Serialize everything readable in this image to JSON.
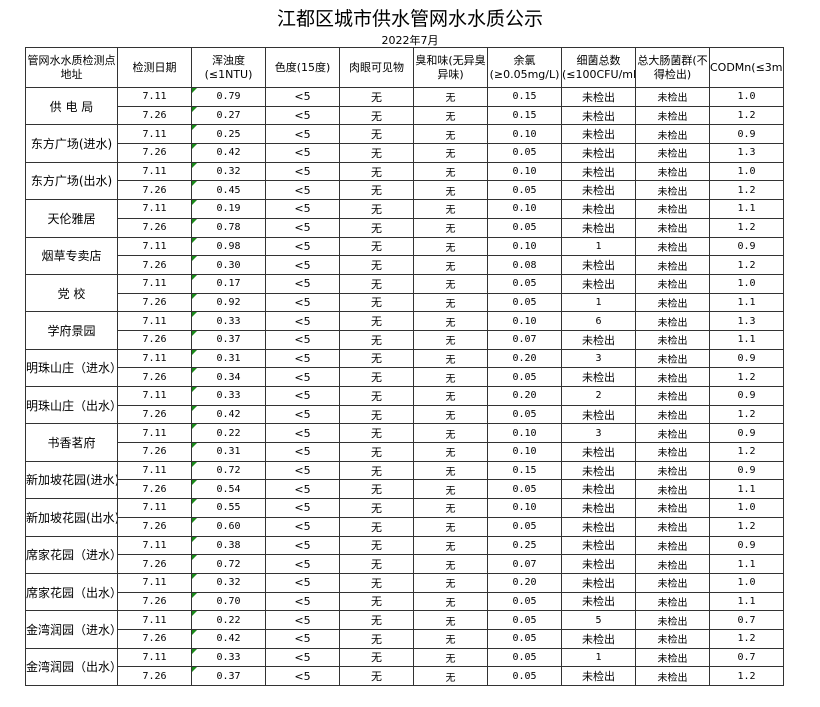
{
  "title": "江都区城市供水管网水水质公示",
  "subtitle": "2022年7月",
  "headers": [
    "管网水水质检测点地址",
    "检测日期",
    "浑浊度(≤1NTU)",
    "色度(15度)",
    "肉眼可见物",
    "臭和味(无异臭异味)",
    "余氯(≥0.05mg/L)",
    "细菌总数(≤100CFU/mL)",
    "总大肠菌群(不得检出)",
    "CODMn(≤3mg/L)"
  ],
  "sites": [
    {
      "name": "供 电 局",
      "rows": [
        [
          "7.11",
          "0.79",
          "<5",
          "无",
          "无",
          "0.15",
          "未检出",
          "未检出",
          "1.0"
        ],
        [
          "7.26",
          "0.27",
          "<5",
          "无",
          "无",
          "0.15",
          "未检出",
          "未检出",
          "1.2"
        ]
      ]
    },
    {
      "name": "东方广场(进水)",
      "rows": [
        [
          "7.11",
          "0.25",
          "<5",
          "无",
          "无",
          "0.10",
          "未检出",
          "未检出",
          "0.9"
        ],
        [
          "7.26",
          "0.42",
          "<5",
          "无",
          "无",
          "0.05",
          "未检出",
          "未检出",
          "1.3"
        ]
      ]
    },
    {
      "name": "东方广场(出水)",
      "rows": [
        [
          "7.11",
          "0.32",
          "<5",
          "无",
          "无",
          "0.10",
          "未检出",
          "未检出",
          "1.0"
        ],
        [
          "7.26",
          "0.45",
          "<5",
          "无",
          "无",
          "0.05",
          "未检出",
          "未检出",
          "1.2"
        ]
      ]
    },
    {
      "name": "天伦雅居",
      "rows": [
        [
          "7.11",
          "0.19",
          "<5",
          "无",
          "无",
          "0.10",
          "未检出",
          "未检出",
          "1.1"
        ],
        [
          "7.26",
          "0.78",
          "<5",
          "无",
          "无",
          "0.05",
          "未检出",
          "未检出",
          "1.2"
        ]
      ]
    },
    {
      "name": "烟草专卖店",
      "rows": [
        [
          "7.11",
          "0.98",
          "<5",
          "无",
          "无",
          "0.10",
          "1",
          "未检出",
          "0.9"
        ],
        [
          "7.26",
          "0.30",
          "<5",
          "无",
          "无",
          "0.08",
          "未检出",
          "未检出",
          "1.2"
        ]
      ]
    },
    {
      "name": "党  校",
      "rows": [
        [
          "7.11",
          "0.17",
          "<5",
          "无",
          "无",
          "0.05",
          "未检出",
          "未检出",
          "1.0"
        ],
        [
          "7.26",
          "0.92",
          "<5",
          "无",
          "无",
          "0.05",
          "1",
          "未检出",
          "1.1"
        ]
      ]
    },
    {
      "name": "学府景园",
      "rows": [
        [
          "7.11",
          "0.33",
          "<5",
          "无",
          "无",
          "0.10",
          "6",
          "未检出",
          "1.3"
        ],
        [
          "7.26",
          "0.37",
          "<5",
          "无",
          "无",
          "0.07",
          "未检出",
          "未检出",
          "1.1"
        ]
      ]
    },
    {
      "name": "明珠山庄（进水）",
      "rows": [
        [
          "7.11",
          "0.31",
          "<5",
          "无",
          "无",
          "0.20",
          "3",
          "未检出",
          "0.9"
        ],
        [
          "7.26",
          "0.34",
          "<5",
          "无",
          "无",
          "0.05",
          "未检出",
          "未检出",
          "1.2"
        ]
      ]
    },
    {
      "name": "明珠山庄（出水）",
      "rows": [
        [
          "7.11",
          "0.33",
          "<5",
          "无",
          "无",
          "0.20",
          "2",
          "未检出",
          "0.9"
        ],
        [
          "7.26",
          "0.42",
          "<5",
          "无",
          "无",
          "0.05",
          "未检出",
          "未检出",
          "1.2"
        ]
      ]
    },
    {
      "name": "书香茗府",
      "rows": [
        [
          "7.11",
          "0.22",
          "<5",
          "无",
          "无",
          "0.10",
          "3",
          "未检出",
          "0.9"
        ],
        [
          "7.26",
          "0.31",
          "<5",
          "无",
          "无",
          "0.10",
          "未检出",
          "未检出",
          "1.2"
        ]
      ]
    },
    {
      "name": "新加坡花园(进水)",
      "rows": [
        [
          "7.11",
          "0.72",
          "<5",
          "无",
          "无",
          "0.15",
          "未检出",
          "未检出",
          "0.9"
        ],
        [
          "7.26",
          "0.54",
          "<5",
          "无",
          "无",
          "0.05",
          "未检出",
          "未检出",
          "1.1"
        ]
      ]
    },
    {
      "name": "新加坡花园(出水)",
      "rows": [
        [
          "7.11",
          "0.55",
          "<5",
          "无",
          "无",
          "0.10",
          "未检出",
          "未检出",
          "1.0"
        ],
        [
          "7.26",
          "0.60",
          "<5",
          "无",
          "无",
          "0.05",
          "未检出",
          "未检出",
          "1.2"
        ]
      ]
    },
    {
      "name": "席家花园（进水）",
      "rows": [
        [
          "7.11",
          "0.38",
          "<5",
          "无",
          "无",
          "0.25",
          "未检出",
          "未检出",
          "0.9"
        ],
        [
          "7.26",
          "0.72",
          "<5",
          "无",
          "无",
          "0.07",
          "未检出",
          "未检出",
          "1.1"
        ]
      ]
    },
    {
      "name": "席家花园（出水）",
      "rows": [
        [
          "7.11",
          "0.32",
          "<5",
          "无",
          "无",
          "0.20",
          "未检出",
          "未检出",
          "1.0"
        ],
        [
          "7.26",
          "0.70",
          "<5",
          "无",
          "无",
          "0.05",
          "未检出",
          "未检出",
          "1.1"
        ]
      ]
    },
    {
      "name": "金湾润园（进水）",
      "rows": [
        [
          "7.11",
          "0.22",
          "<5",
          "无",
          "无",
          "0.05",
          "5",
          "未检出",
          "0.7"
        ],
        [
          "7.26",
          "0.42",
          "<5",
          "无",
          "无",
          "0.05",
          "未检出",
          "未检出",
          "1.2"
        ]
      ]
    },
    {
      "name": "金湾润园（出水）",
      "rows": [
        [
          "7.11",
          "0.33",
          "<5",
          "无",
          "无",
          "0.05",
          "1",
          "未检出",
          "0.7"
        ],
        [
          "7.26",
          "0.37",
          "<5",
          "无",
          "无",
          "0.05",
          "未检出",
          "未检出",
          "1.2"
        ]
      ]
    }
  ]
}
